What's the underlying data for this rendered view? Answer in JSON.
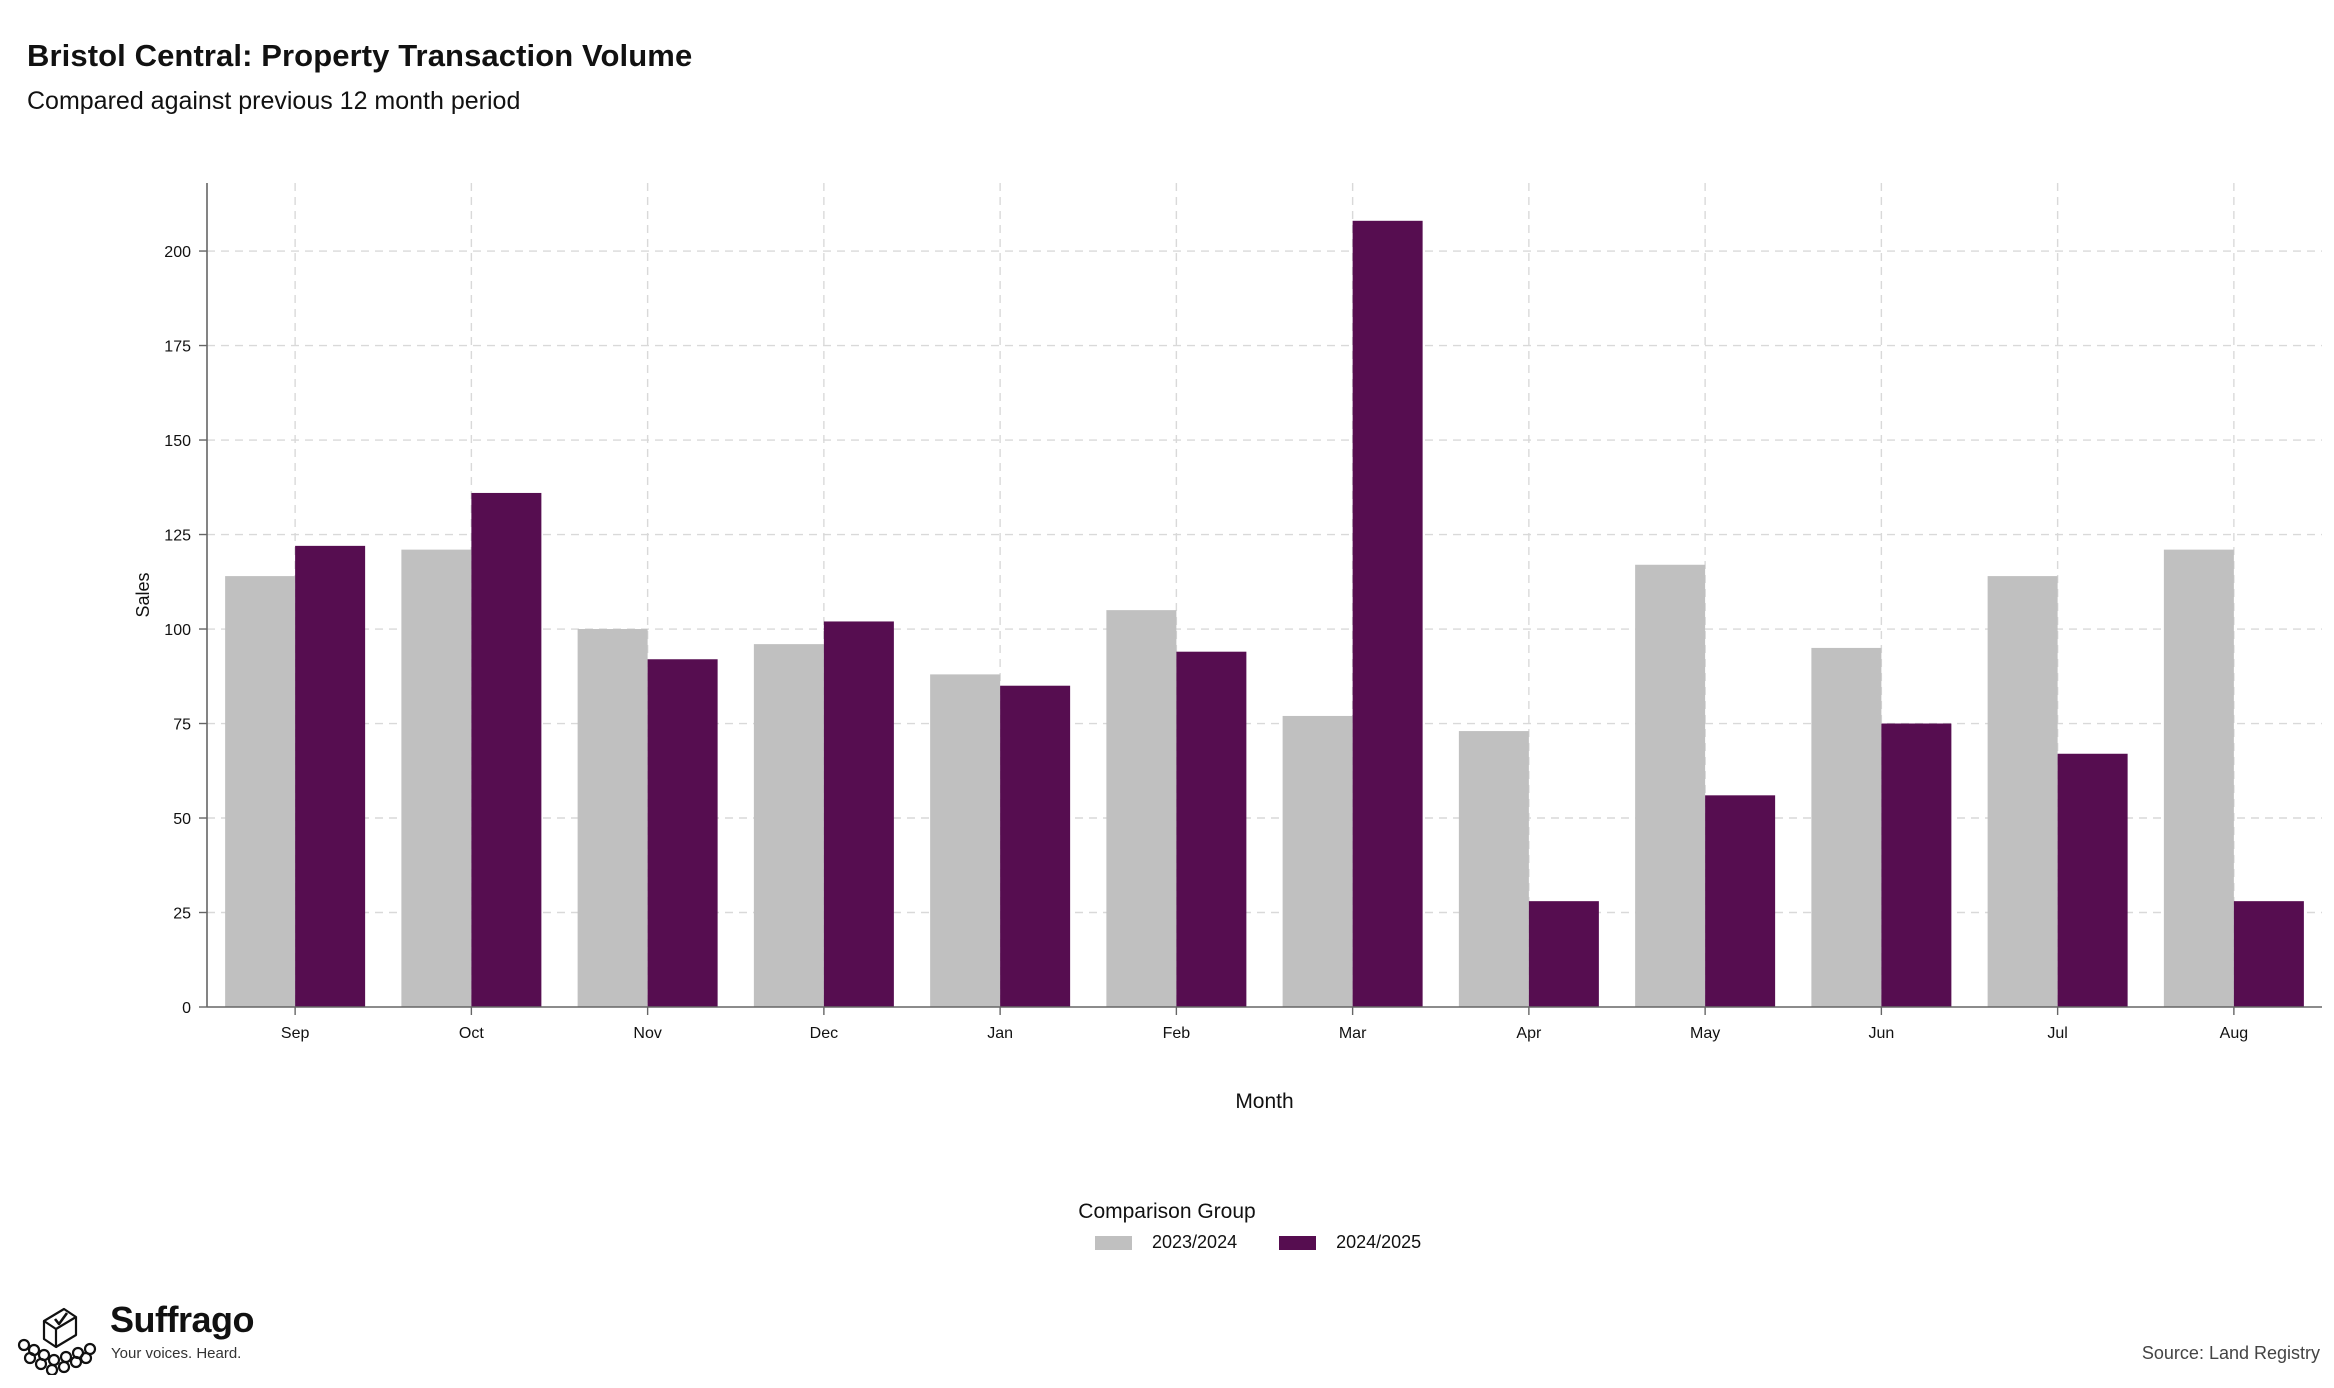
{
  "header": {
    "title": "Bristol Central: Property Transaction Volume",
    "subtitle": "Compared against previous 12 month period"
  },
  "legend": {
    "title": "Comparison Group",
    "items": [
      "2023/2024",
      "2024/2025"
    ]
  },
  "footer": {
    "brand_name": "Suffrago",
    "brand_tagline": "Your voices. Heard.",
    "source": "Source: Land Registry"
  },
  "colors": {
    "prev": "#c0c0c0",
    "curr": "#560d50",
    "grid": "#d9d9d9",
    "axis": "#666666"
  },
  "chart_data": {
    "type": "bar",
    "title": "Bristol Central: Property Transaction Volume",
    "subtitle": "Compared against previous 12 month period",
    "xlabel": "Month",
    "ylabel": "Sales",
    "ylim": [
      0,
      218
    ],
    "yticks": [
      0,
      25,
      50,
      75,
      100,
      125,
      150,
      175,
      200
    ],
    "categories": [
      "Sep",
      "Oct",
      "Nov",
      "Dec",
      "Jan",
      "Feb",
      "Mar",
      "Apr",
      "May",
      "Jun",
      "Jul",
      "Aug"
    ],
    "series": [
      {
        "name": "2023/2024",
        "values": [
          114,
          121,
          100,
          96,
          88,
          105,
          77,
          73,
          117,
          95,
          114,
          121
        ]
      },
      {
        "name": "2024/2025",
        "values": [
          122,
          136,
          92,
          102,
          85,
          94,
          208,
          28,
          56,
          75,
          67,
          28
        ]
      }
    ],
    "grid": true,
    "legend_position": "bottom"
  }
}
